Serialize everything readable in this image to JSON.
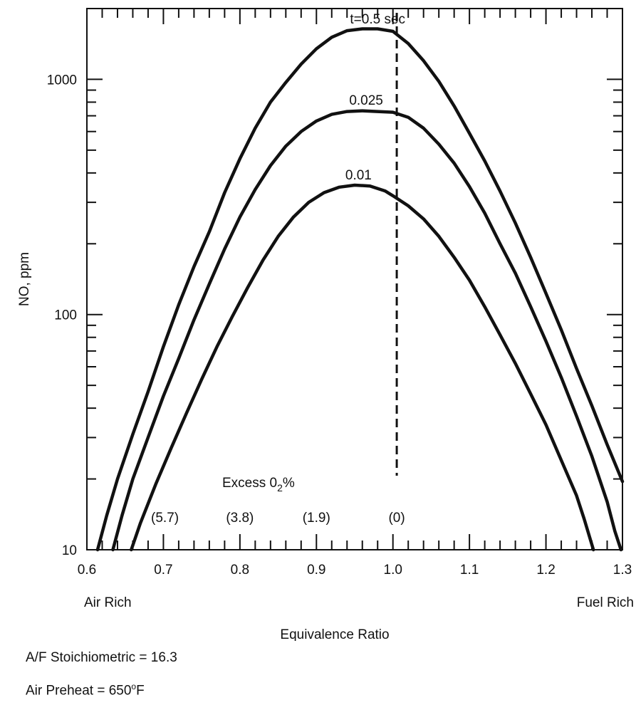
{
  "chart_data": {
    "type": "line",
    "xlabel": "Equivalence Ratio",
    "ylabel": "NO, ppm",
    "xlim": [
      0.6,
      1.3
    ],
    "ylim": [
      10,
      2000
    ],
    "yscale": "log",
    "x_ticks": [
      "0.6",
      "0.7",
      "0.8",
      "0.9",
      "1.0",
      "1.1",
      "1.2",
      "1.3"
    ],
    "y_ticks": [
      "10",
      "100",
      "1000"
    ],
    "x_end_labels": {
      "left": "Air Rich",
      "right": "Fuel Rich"
    },
    "reference_line": {
      "x": 1.005,
      "style": "dashed",
      "label": "(0)"
    },
    "o2_header": {
      "text": "Excess 0",
      "sub": "2",
      "suffix": "%"
    },
    "o2_labels": [
      {
        "x": 0.702,
        "text": "(5.7)"
      },
      {
        "x": 0.8,
        "text": "(3.8)"
      },
      {
        "x": 0.9,
        "text": "(1.9)"
      },
      {
        "x": 1.005,
        "text": "(0)"
      }
    ],
    "series": [
      {
        "name": "t=0.5 sec",
        "label_at": [
          0.98,
          1680
        ],
        "points": [
          [
            0.614,
            10
          ],
          [
            0.626,
            14
          ],
          [
            0.64,
            20
          ],
          [
            0.66,
            31
          ],
          [
            0.68,
            47
          ],
          [
            0.7,
            73
          ],
          [
            0.72,
            110
          ],
          [
            0.74,
            160
          ],
          [
            0.76,
            225
          ],
          [
            0.78,
            330
          ],
          [
            0.8,
            460
          ],
          [
            0.82,
            620
          ],
          [
            0.84,
            800
          ],
          [
            0.86,
            970
          ],
          [
            0.88,
            1160
          ],
          [
            0.9,
            1350
          ],
          [
            0.92,
            1510
          ],
          [
            0.94,
            1610
          ],
          [
            0.96,
            1640
          ],
          [
            0.98,
            1640
          ],
          [
            1.0,
            1600
          ],
          [
            1.02,
            1420
          ],
          [
            1.04,
            1200
          ],
          [
            1.06,
            980
          ],
          [
            1.08,
            770
          ],
          [
            1.1,
            590
          ],
          [
            1.12,
            450
          ],
          [
            1.14,
            335
          ],
          [
            1.16,
            245
          ],
          [
            1.18,
            175
          ],
          [
            1.2,
            123
          ],
          [
            1.22,
            86
          ],
          [
            1.24,
            59
          ],
          [
            1.26,
            41
          ],
          [
            1.28,
            28
          ],
          [
            1.3,
            19.5
          ]
        ]
      },
      {
        "name": "0.025",
        "label_at": [
          0.965,
          760
        ],
        "points": [
          [
            0.634,
            10
          ],
          [
            0.646,
            14
          ],
          [
            0.66,
            20
          ],
          [
            0.68,
            30
          ],
          [
            0.7,
            45
          ],
          [
            0.72,
            65
          ],
          [
            0.74,
            95
          ],
          [
            0.76,
            135
          ],
          [
            0.78,
            190
          ],
          [
            0.8,
            260
          ],
          [
            0.82,
            340
          ],
          [
            0.84,
            430
          ],
          [
            0.86,
            520
          ],
          [
            0.88,
            600
          ],
          [
            0.9,
            665
          ],
          [
            0.92,
            710
          ],
          [
            0.94,
            730
          ],
          [
            0.96,
            735
          ],
          [
            0.98,
            730
          ],
          [
            1.0,
            725
          ],
          [
            1.02,
            690
          ],
          [
            1.04,
            620
          ],
          [
            1.06,
            530
          ],
          [
            1.08,
            440
          ],
          [
            1.1,
            350
          ],
          [
            1.12,
            270
          ],
          [
            1.14,
            200
          ],
          [
            1.16,
            150
          ],
          [
            1.18,
            108
          ],
          [
            1.2,
            77
          ],
          [
            1.22,
            54
          ],
          [
            1.24,
            37
          ],
          [
            1.26,
            25
          ],
          [
            1.28,
            16
          ],
          [
            1.29,
            12
          ],
          [
            1.298,
            10
          ]
        ]
      },
      {
        "name": "0.01",
        "label_at": [
          0.955,
          365
        ],
        "points": [
          [
            0.658,
            10
          ],
          [
            0.67,
            13
          ],
          [
            0.69,
            19
          ],
          [
            0.71,
            27
          ],
          [
            0.73,
            38
          ],
          [
            0.75,
            53
          ],
          [
            0.77,
            73
          ],
          [
            0.79,
            98
          ],
          [
            0.81,
            130
          ],
          [
            0.83,
            170
          ],
          [
            0.85,
            215
          ],
          [
            0.87,
            260
          ],
          [
            0.89,
            300
          ],
          [
            0.91,
            330
          ],
          [
            0.93,
            348
          ],
          [
            0.95,
            355
          ],
          [
            0.97,
            352
          ],
          [
            0.99,
            335
          ],
          [
            1.0,
            320
          ],
          [
            1.02,
            290
          ],
          [
            1.04,
            255
          ],
          [
            1.06,
            215
          ],
          [
            1.08,
            175
          ],
          [
            1.1,
            140
          ],
          [
            1.12,
            108
          ],
          [
            1.14,
            82
          ],
          [
            1.16,
            62
          ],
          [
            1.18,
            46
          ],
          [
            1.2,
            34
          ],
          [
            1.22,
            24
          ],
          [
            1.24,
            17
          ],
          [
            1.25,
            13.5
          ],
          [
            1.262,
            10
          ]
        ]
      }
    ]
  },
  "notes": {
    "af": "A/F Stoichiometric = 16.3",
    "preheat_prefix": "Air Preheat = 650",
    "preheat_degree": "o",
    "preheat_unit": "F"
  }
}
